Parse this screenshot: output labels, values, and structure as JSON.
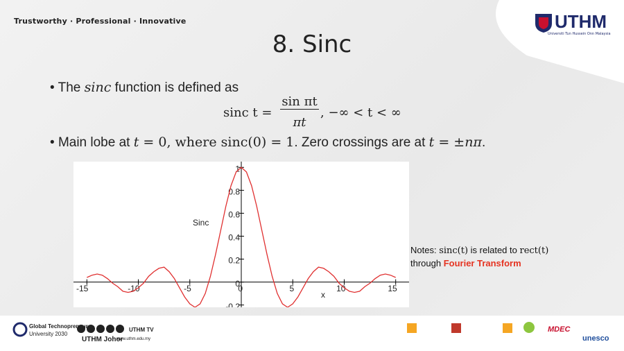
{
  "header": {
    "tagline": "Trustworthy · Professional · Innovative",
    "logo": "UTHM",
    "logo_subtitle": "Universiti Tun Hussein Onn Malaysia"
  },
  "title": "8. Sinc",
  "bullets": [
    [
      "The ",
      "sinc",
      " function is defined as"
    ],
    [
      "Main lobe at ",
      "t",
      " = 0, where ",
      "sinc(0) = 1",
      ". Zero crossings are at ",
      "t",
      " = ±",
      "nπ",
      "."
    ]
  ],
  "equation": {
    "lhs": "sinc t =",
    "numerator": "sin πt",
    "denominator": "πt",
    "range": ", −∞ < t < ∞"
  },
  "notes": {
    "prefix": "Notes: ",
    "f1": "sinc(t)",
    "mid1": " is related to ",
    "f2": "rect(t)",
    "mid2": " through ",
    "highlight": "Fourier Transform"
  },
  "chart_data": {
    "type": "line",
    "y_label": "Sinc",
    "x_label": "x",
    "x": [
      -15,
      -14.5,
      -14,
      -13.5,
      -13,
      -12.5,
      -12,
      -11.5,
      -11,
      -10.5,
      -10,
      -9.5,
      -9,
      -8.5,
      -8,
      -7.5,
      -7,
      -6.5,
      -6,
      -5.5,
      -5,
      -4.5,
      -4,
      -3.5,
      -3,
      -2.5,
      -2,
      -1.5,
      -1,
      -0.5,
      0,
      0.5,
      1,
      1.5,
      2,
      2.5,
      3,
      3.5,
      4,
      4.5,
      5,
      5.5,
      6,
      6.5,
      7,
      7.5,
      8,
      8.5,
      9,
      9.5,
      10,
      10.5,
      11,
      11.5,
      12,
      12.5,
      13,
      13.5,
      14,
      14.5,
      15
    ],
    "series": [
      {
        "name": "Sinc",
        "color": "#e03030",
        "values": [
          0.04,
          0.06,
          0.07,
          0.06,
          0.03,
          -0.01,
          -0.04,
          -0.08,
          -0.09,
          -0.08,
          -0.05,
          -0.01,
          0.05,
          0.09,
          0.12,
          0.13,
          0.09,
          0.03,
          -0.05,
          -0.13,
          -0.19,
          -0.22,
          -0.19,
          -0.1,
          0.05,
          0.24,
          0.45,
          0.66,
          0.84,
          0.96,
          1,
          0.96,
          0.84,
          0.66,
          0.45,
          0.24,
          0.05,
          -0.1,
          -0.19,
          -0.22,
          -0.19,
          -0.13,
          -0.05,
          0.03,
          0.09,
          0.13,
          0.12,
          0.09,
          0.05,
          -0.01,
          -0.05,
          -0.08,
          -0.09,
          -0.08,
          -0.04,
          -0.01,
          0.03,
          0.06,
          0.07,
          0.06,
          0.04
        ]
      }
    ],
    "xlim": [
      -16.3,
      16.3
    ],
    "ylim": [
      -0.22,
      1.05
    ],
    "xticks": [
      -15,
      -10,
      -5,
      0,
      5,
      10,
      15
    ],
    "yticks": [
      -0.2,
      0,
      0.2,
      0.4,
      0.6,
      0.8,
      1
    ],
    "grid": false
  },
  "footer": [
    "Global Technopreneur",
    "University 2030",
    "UTHM Johor",
    "www.uthm.edu.my",
    "UTHM TV",
    "MDEC",
    "unesco"
  ]
}
